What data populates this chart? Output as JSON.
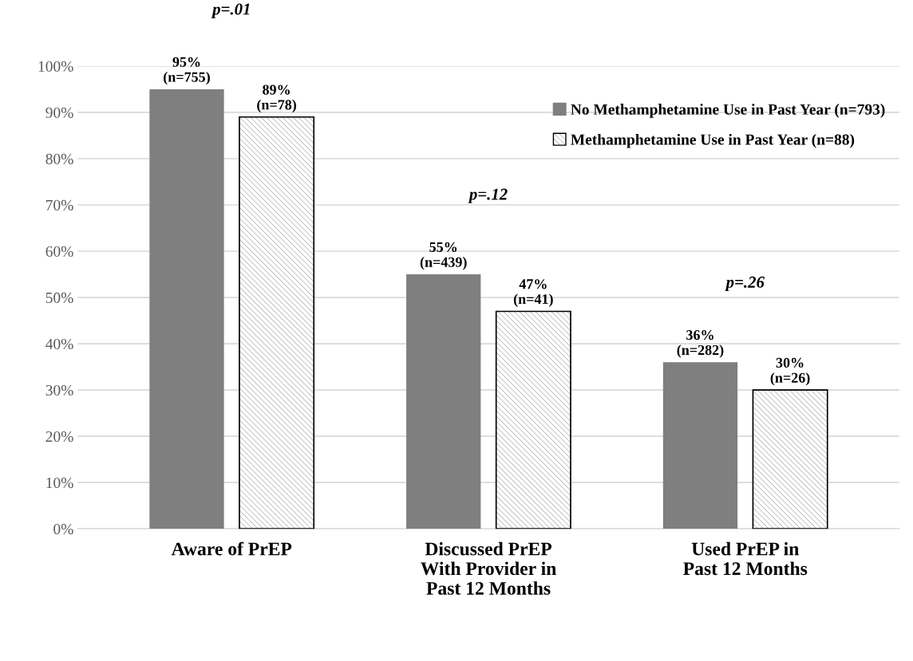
{
  "chart_data": {
    "type": "bar",
    "categories": [
      "Aware of PrEP",
      "Discussed PrEP\nWith Provider in\nPast 12 Months",
      "Used PrEP in\nPast 12 Months"
    ],
    "series": [
      {
        "name": "No Methamphetamine Use in Past Year (n=793)",
        "color": "#7f7f7f",
        "values": [
          95,
          55,
          36
        ],
        "value_labels": [
          "95%\n(n=755)",
          "55%\n(n=439)",
          "36%\n(n=282)"
        ]
      },
      {
        "name": "Methamphetamine Use in Past Year (n=88)",
        "color": "#ffffff",
        "values": [
          89,
          47,
          30
        ],
        "value_labels": [
          "89%\n(n=78)",
          "47%\n(n=41)",
          "30%\n(n=26)"
        ]
      }
    ],
    "annotations": [
      "p=.01",
      "p=.12",
      "p=.26"
    ],
    "ylim": [
      0,
      100
    ],
    "yticks": [
      {
        "value": 0,
        "label": "0%"
      },
      {
        "value": 10,
        "label": "10%"
      },
      {
        "value": 20,
        "label": "20%"
      },
      {
        "value": 30,
        "label": "30%"
      },
      {
        "value": 40,
        "label": "40%"
      },
      {
        "value": 50,
        "label": "50%"
      },
      {
        "value": 60,
        "label": "60%"
      },
      {
        "value": 70,
        "label": "70%"
      },
      {
        "value": 80,
        "label": "80%"
      },
      {
        "value": 90,
        "label": "90%"
      },
      {
        "value": 100,
        "label": "100%"
      }
    ],
    "grid": "y",
    "legend": "top right"
  }
}
